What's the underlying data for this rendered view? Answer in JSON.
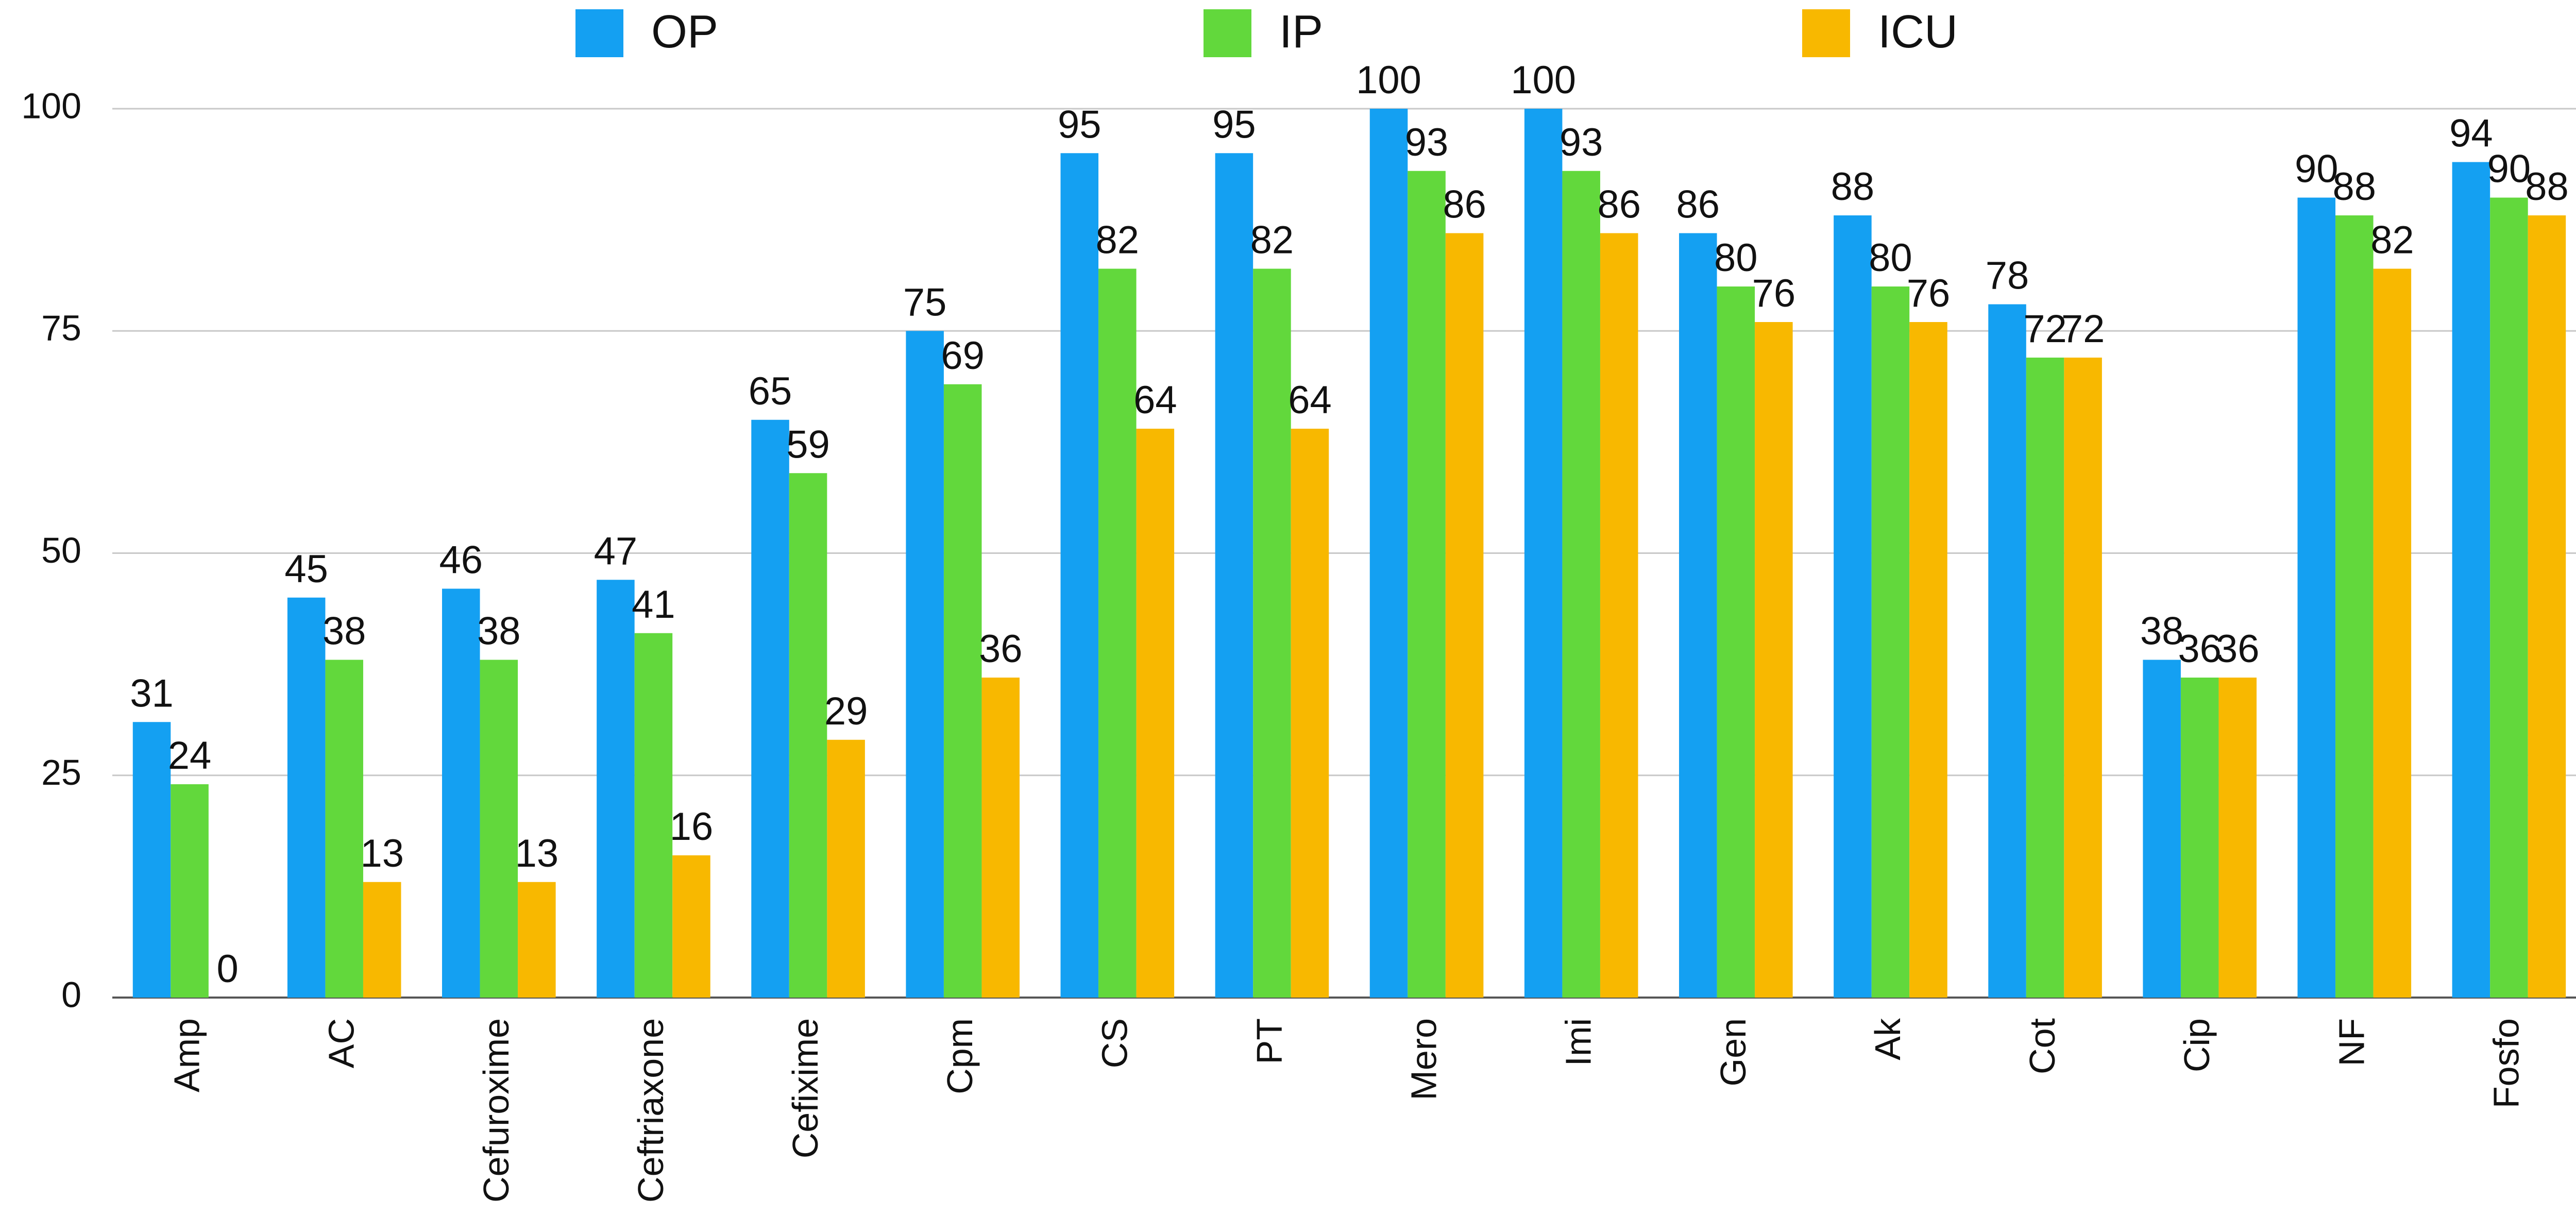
{
  "chart_data": {
    "type": "bar",
    "categories": [
      "Amp",
      "AC",
      "Cefuroxime",
      "Ceftriaxone",
      "Cefixime",
      "Cpm",
      "CS",
      "PT",
      "Mero",
      "Imi",
      "Gen",
      "Ak",
      "Cot",
      "Cip",
      "NF",
      "Fosfo"
    ],
    "series": [
      {
        "name": "OP",
        "color": "#14a0f2",
        "values": [
          31,
          45,
          46,
          47,
          65,
          75,
          95,
          95,
          100,
          100,
          86,
          88,
          78,
          38,
          90,
          94
        ]
      },
      {
        "name": "IP",
        "color": "#62d83c",
        "values": [
          24,
          38,
          38,
          41,
          59,
          69,
          82,
          82,
          93,
          93,
          80,
          80,
          72,
          36,
          88,
          90
        ]
      },
      {
        "name": "ICU",
        "color": "#f8b800",
        "values": [
          0,
          13,
          13,
          16,
          29,
          36,
          64,
          64,
          86,
          86,
          76,
          76,
          72,
          36,
          82,
          88
        ]
      }
    ],
    "ylim": [
      0,
      100
    ],
    "yticks": [
      0,
      25,
      50,
      75,
      100
    ],
    "grid": true,
    "legend": "top"
  }
}
